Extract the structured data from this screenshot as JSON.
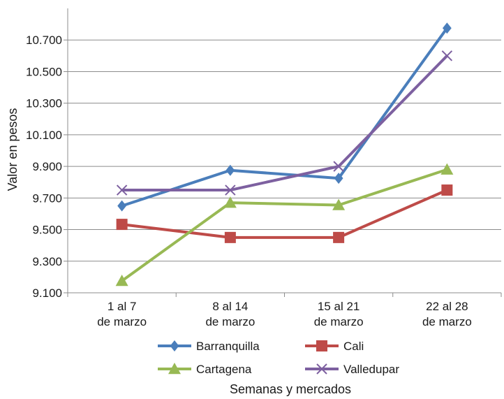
{
  "chart_data": {
    "type": "line",
    "title": "",
    "xlabel": "Semanas y mercados",
    "ylabel": "Valor en pesos",
    "categories": [
      [
        "1 al 7",
        "de marzo"
      ],
      [
        "8 al 14",
        "de marzo"
      ],
      [
        "15 al 21",
        "de marzo"
      ],
      [
        "22 al 28",
        "de marzo"
      ]
    ],
    "ylim": [
      9100,
      10900
    ],
    "yticks": [
      "9.100",
      "9.300",
      "9.500",
      "9.700",
      "9.900",
      "10.100",
      "10.300",
      "10.500",
      "10.700"
    ],
    "ytick_values": [
      9100,
      9300,
      9500,
      9700,
      9900,
      10100,
      10300,
      10500,
      10700
    ],
    "grid": true,
    "legend_placement": "bottom",
    "series": [
      {
        "name": "Barranquilla",
        "values": [
          9650,
          9875,
          9825,
          10775
        ],
        "color": "#4a7ebb",
        "marker": "diamond"
      },
      {
        "name": "Cali",
        "values": [
          9533,
          9450,
          9450,
          9750
        ],
        "color": "#be4b48",
        "marker": "square"
      },
      {
        "name": "Cartagena",
        "values": [
          9175,
          9670,
          9655,
          9880
        ],
        "color": "#98b954",
        "marker": "triangle"
      },
      {
        "name": "Valledupar",
        "values": [
          9750,
          9750,
          9900,
          10600
        ],
        "color": "#7d60a0",
        "marker": "x"
      }
    ]
  }
}
